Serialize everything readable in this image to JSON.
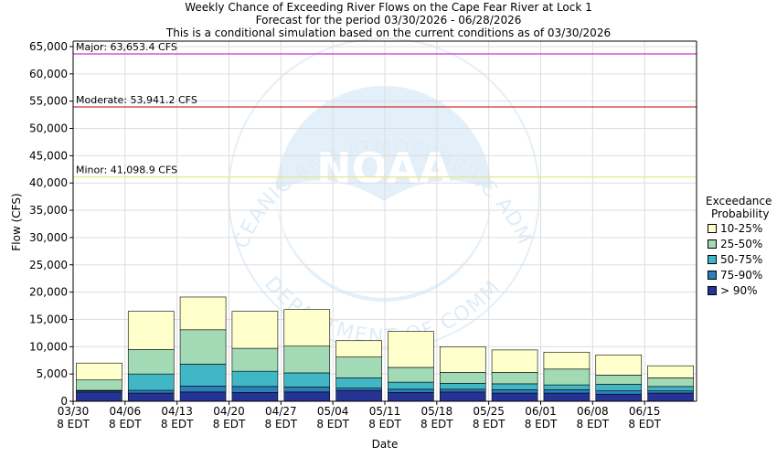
{
  "title_lines": [
    "Weekly Chance of Exceeding River Flows on the Cape Fear River at Lock 1",
    "Forecast for the period 03/30/2026 - 06/28/2026",
    "This is a conditional simulation based on the current conditions as of 03/30/2026"
  ],
  "watermark": {
    "org_name": "NATIONAL OCEANIC AND ATMOSPHERIC ADMINISTRATION",
    "dept": "U.S. DEPARTMENT OF COMMERCE",
    "logo_text": "NOAA"
  },
  "legend": {
    "title_line1": "Exceedance",
    "title_line2": "Probability",
    "entries": [
      {
        "label": "10-25%",
        "color": "#ffffcc"
      },
      {
        "label": "25-50%",
        "color": "#a1dab4"
      },
      {
        "label": "50-75%",
        "color": "#41b6c4"
      },
      {
        "label": "75-90%",
        "color": "#2c7fb8"
      },
      {
        "label": "> 90%",
        "color": "#253494"
      }
    ]
  },
  "chart_data": {
    "type": "bar",
    "stacked": true,
    "xlabel": "Date",
    "ylabel": "Flow (CFS)",
    "ylim": [
      0,
      66000
    ],
    "yticks": [
      0,
      5000,
      10000,
      15000,
      20000,
      25000,
      30000,
      35000,
      40000,
      45000,
      50000,
      55000,
      60000,
      65000
    ],
    "ytick_labels": [
      "0",
      "5,000",
      "10,000",
      "15,000",
      "20,000",
      "25,000",
      "30,000",
      "35,000",
      "40,000",
      "45,000",
      "50,000",
      "55,000",
      "60,000",
      "65,000"
    ],
    "grid": true,
    "x_tick_labels": [
      [
        "03/30",
        "8 EDT"
      ],
      [
        "04/06",
        "8 EDT"
      ],
      [
        "04/13",
        "8 EDT"
      ],
      [
        "04/20",
        "8 EDT"
      ],
      [
        "04/27",
        "8 EDT"
      ],
      [
        "05/04",
        "8 EDT"
      ],
      [
        "05/11",
        "8 EDT"
      ],
      [
        "05/18",
        "8 EDT"
      ],
      [
        "05/25",
        "8 EDT"
      ],
      [
        "06/01",
        "8 EDT"
      ],
      [
        "06/08",
        "8 EDT"
      ],
      [
        "06/15",
        "8 EDT"
      ]
    ],
    "categories": [
      "03/30",
      "04/06",
      "04/13",
      "04/20",
      "04/27",
      "05/04",
      "05/11",
      "05/18",
      "05/25",
      "06/01",
      "06/08",
      "06/15"
    ],
    "exceedance_levels": [
      {
        "name": "> 90%",
        "color": "#253494",
        "values": [
          1700,
          1500,
          1700,
          1600,
          1700,
          2000,
          1600,
          1700,
          1500,
          1500,
          1300,
          1500
        ]
      },
      {
        "name": "75-90%",
        "color": "#2c7fb8",
        "values": [
          1900,
          2000,
          2800,
          2700,
          2600,
          2400,
          2200,
          2200,
          2100,
          2100,
          1900,
          1900
        ]
      },
      {
        "name": "50-75%",
        "color": "#41b6c4",
        "values": [
          2000,
          5000,
          6800,
          5500,
          5200,
          4300,
          3500,
          3300,
          3200,
          3000,
          3100,
          2700
        ]
      },
      {
        "name": "25-50%",
        "color": "#a1dab4",
        "values": [
          3900,
          9500,
          13100,
          9700,
          10100,
          8100,
          6200,
          5300,
          5300,
          5900,
          4800,
          4300
        ]
      },
      {
        "name": "10-25%",
        "color": "#ffffcc",
        "values": [
          7000,
          16500,
          19100,
          16500,
          16800,
          11100,
          12800,
          10000,
          9400,
          9000,
          8500,
          6500
        ]
      }
    ],
    "thresholds": [
      {
        "label": "Major: 63,653.4 CFS",
        "value": 63653.4,
        "color": "#cc33cc"
      },
      {
        "label": "Moderate: 53,941.2 CFS",
        "value": 53941.2,
        "color": "#cc3333"
      },
      {
        "label": "Minor: 41,098.9 CFS",
        "value": 41098.9,
        "color": "#e6e68a"
      }
    ]
  }
}
